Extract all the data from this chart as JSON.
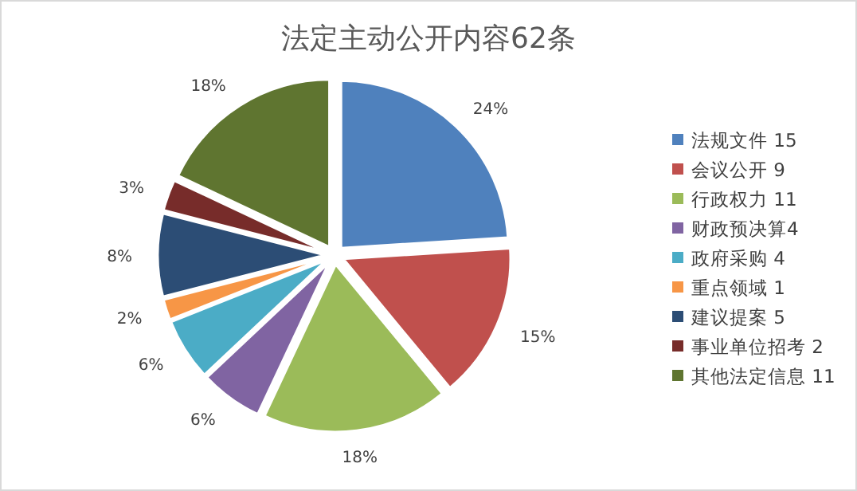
{
  "chart_data": {
    "type": "pie",
    "title": "法定主动公开内容62条",
    "categories": [
      "法规文件 15",
      "会议公开 9",
      "行政权力 11",
      "财政预决算4",
      "政府采购 4",
      "重点领域 1",
      "建议提案 5",
      "事业单位招考 2",
      "其他法定信息 11"
    ],
    "values": [
      24,
      15,
      18,
      6,
      6,
      2,
      8,
      3,
      18
    ],
    "value_labels": [
      "24%",
      "15%",
      "18%",
      "6%",
      "6%",
      "2%",
      "8%",
      "3%",
      "18%"
    ],
    "colors": [
      "#4f81bd",
      "#c0504d",
      "#9bbb59",
      "#8064a2",
      "#4bacc6",
      "#f79646",
      "#2c4d75",
      "#772c2a",
      "#5f7530"
    ],
    "legend": "right"
  }
}
